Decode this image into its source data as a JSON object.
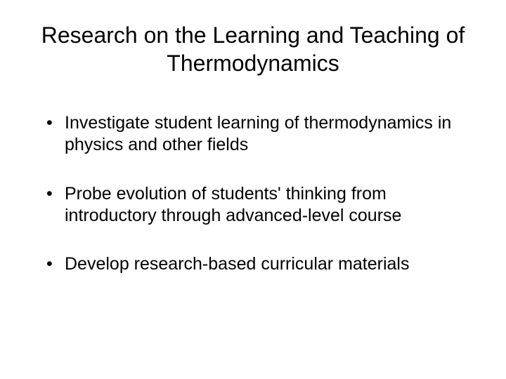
{
  "slide": {
    "title": "Research on the Learning and Teaching of Thermodynamics",
    "bullets": [
      "Investigate student learning of thermodynamics in physics and other fields",
      "Probe evolution of students' thinking from introductory through advanced-level course",
      "Develop research-based curricular materials"
    ],
    "colors": {
      "background": "#ffffff",
      "text": "#000000"
    },
    "typography": {
      "title_fontsize": 32,
      "bullet_fontsize": 25,
      "font_family": "Arial"
    }
  }
}
